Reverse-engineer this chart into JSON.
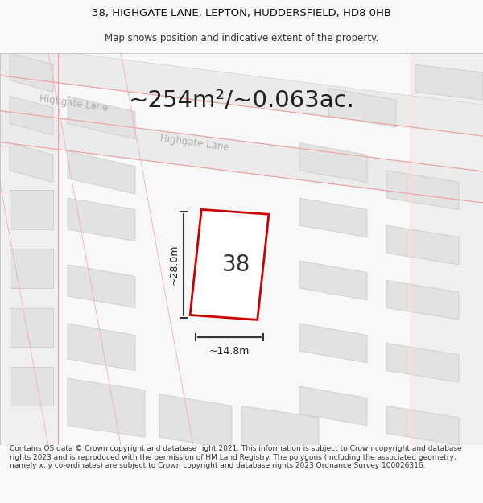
{
  "title_line1": "38, HIGHGATE LANE, LEPTON, HUDDERSFIELD, HD8 0HB",
  "title_line2": "Map shows position and indicative extent of the property.",
  "area_text": "~254m²/~0.063ac.",
  "property_number": "38",
  "dim_width": "~14.8m",
  "dim_height": "~28.0m",
  "footer_text": "Contains OS data © Crown copyright and database right 2021. This information is subject to Crown copyright and database rights 2023 and is reproduced with the permission of HM Land Registry. The polygons (including the associated geometry, namely x, y co-ordinates) are subject to Crown copyright and database rights 2023 Ordnance Survey 100026316.",
  "bg_color": "#f8f8f8",
  "map_bg": "#ffffff",
  "road_fill": "#e8e8e8",
  "building_fill": "#e0e0e0",
  "building_edge": "#cccccc",
  "road_line_color": "#d4d4d4",
  "road_outline_color": "#cccccc",
  "property_edge": "#dd0000",
  "property_fill": "#ffffff",
  "dim_line_color": "#333333",
  "title_fontsize": 9,
  "area_fontsize": 22,
  "number_fontsize": 22,
  "road_label_color": "#aaaaaa",
  "street_label1": "Highgate Lane",
  "street_label2": "Highgate Lane"
}
